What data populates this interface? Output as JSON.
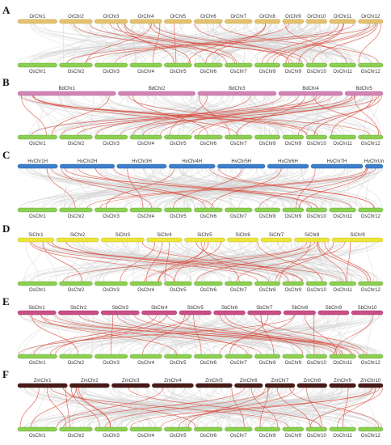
{
  "colors": {
    "rice_bar": "#8ccf52",
    "rice_bar_stroke": "#5a9e2a",
    "background_link": "#d3d3d3",
    "highlight_link": "#d9493a"
  },
  "panels": [
    {
      "letter": "A",
      "top_color": "#e3c270",
      "top_stroke": "#b8973f",
      "top_chromosomes": [
        "OrChr1",
        "OrChr2",
        "OrChr3",
        "OrChr4",
        "OrChr5",
        "OrChr6",
        "OrChr7",
        "OrChr8",
        "OrChr9",
        "OrChr10",
        "OrChr11",
        "OrChr12"
      ],
      "bottom_chromosomes": [
        "OsChr1",
        "OsChr2",
        "OsChr3",
        "OsChr4",
        "OsChr5",
        "OsChr6",
        "OsChr7",
        "OsChr8",
        "OsChr9",
        "OsChr10",
        "OsChr11",
        "OsChr12"
      ]
    },
    {
      "letter": "B",
      "top_color": "#d383b5",
      "top_stroke": "#a8558a",
      "top_chromosomes": [
        "BdChr1",
        "BdChr2",
        "BdChr3",
        "BdChr4",
        "BdChr5"
      ],
      "bottom_chromosomes": [
        "OsChr1",
        "OsChr2",
        "OsChr3",
        "OsChr4",
        "OsChr5",
        "OsChr6",
        "OsChr7",
        "OsChr8",
        "OsChr9",
        "OsChr10",
        "OsChr11",
        "OsChr12"
      ]
    },
    {
      "letter": "C",
      "top_color": "#3d7fcc",
      "top_stroke": "#1f5699",
      "top_chromosomes": [
        "HvChr1H",
        "HvChr2H",
        "HvChr3H",
        "HvChr4H",
        "HvChr5H",
        "HvChr6H",
        "HvChr7H",
        "HvChrUn"
      ],
      "bottom_chromosomes": [
        "OsChr1",
        "OsChr2",
        "OsChr3",
        "OsChr4",
        "OsChr5",
        "OsChr6",
        "OsChr7",
        "OsChr8",
        "OsChr9",
        "OsChr10",
        "OsChr11",
        "OsChr12"
      ]
    },
    {
      "letter": "D",
      "top_color": "#ece539",
      "top_stroke": "#b8b21a",
      "top_chromosomes": [
        "SiChr1",
        "SiChr2",
        "SiChr3",
        "SiChr4",
        "SiChr5",
        "SiChr6",
        "SiChr7",
        "SiChr8",
        "SiChr9"
      ],
      "bottom_chromosomes": [
        "OsChr1",
        "OsChr2",
        "OsChr3",
        "OsChr4",
        "OsChr5",
        "OsChr6",
        "OsChr7",
        "OsChr8",
        "OsChr9",
        "OsChr10",
        "OsChr11",
        "OsChr12"
      ]
    },
    {
      "letter": "E",
      "top_color": "#c94f86",
      "top_stroke": "#962e5e",
      "top_chromosomes": [
        "SbChr1",
        "SbChr2",
        "SbChr3",
        "SbChr4",
        "SbChr5",
        "SbChr6",
        "SbChr7",
        "SbChr8",
        "SbChr9",
        "SbChr10"
      ],
      "bottom_chromosomes": [
        "OsChr1",
        "OsChr2",
        "OsChr3",
        "OsChr4",
        "OsChr5",
        "OsChr6",
        "OsChr7",
        "OsChr8",
        "OsChr9",
        "OsChr10",
        "OsChr11",
        "OsChr12"
      ]
    },
    {
      "letter": "F",
      "top_color": "#4a1a16",
      "top_stroke": "#2a0d0a",
      "top_chromosomes": [
        "ZmChr1",
        "ZmChr2",
        "ZmChr3",
        "ZmChr4",
        "ZmChr5",
        "ZmChr6",
        "ZmChr7",
        "ZmChr8",
        "ZmChr9",
        "ZmChr10"
      ],
      "bottom_chromosomes": [
        "OsChr1",
        "OsChr2",
        "OsChr3",
        "OsChr4",
        "OsChr5",
        "OsChr6",
        "OsChr7",
        "OsChr8",
        "OsChr9",
        "OsChr10",
        "OsChr11",
        "OsChr12"
      ]
    }
  ]
}
